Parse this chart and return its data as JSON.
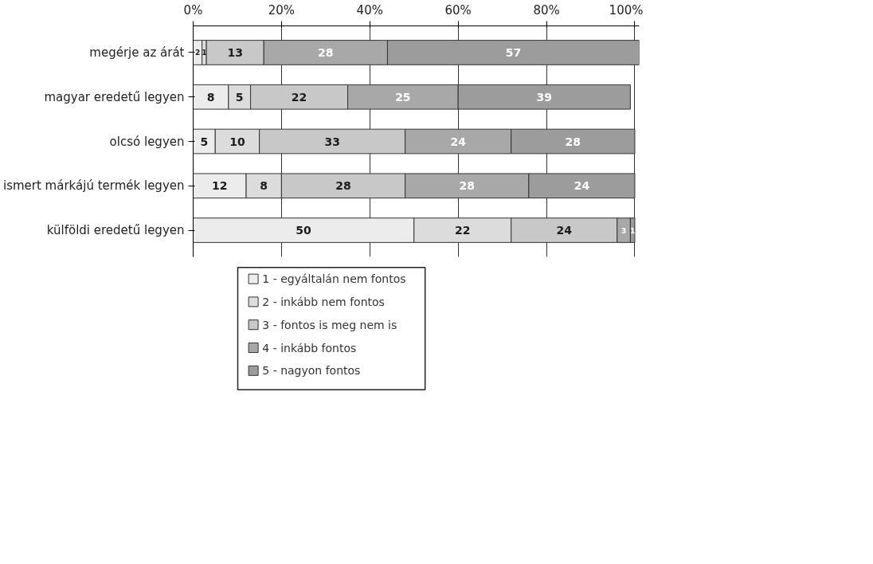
{
  "chart_data": {
    "type": "bar",
    "orientation": "horizontal",
    "stacked": true,
    "data_labels": true,
    "grid": "x",
    "legend": "bottom",
    "categories": [
      "megérje az árát",
      "magyar eredetű legyen",
      "olcsó legyen",
      "ismert márkájú termék legyen",
      "külföldi eredetű legyen"
    ],
    "xlim": [
      0,
      101
    ],
    "xticks": [
      {
        "value": 0,
        "label": "0%"
      },
      {
        "value": 20,
        "label": "20%"
      },
      {
        "value": 40,
        "label": "40%"
      },
      {
        "value": 60,
        "label": "60%"
      },
      {
        "value": 80,
        "label": "80%"
      },
      {
        "value": 100,
        "label": "100%"
      }
    ],
    "series": [
      {
        "name": "1 - egyáltalán nem fontos",
        "color": "#ececec",
        "values": [
          2,
          8,
          5,
          12,
          50
        ]
      },
      {
        "name": "2 - inkább nem fontos",
        "color": "#dcdcdc",
        "values": [
          1,
          5,
          10,
          8,
          22
        ]
      },
      {
        "name": "3 - fontos is meg nem is",
        "color": "#c8c8c8",
        "values": [
          13,
          22,
          33,
          28,
          24
        ]
      },
      {
        "name": "4 - inkább fontos",
        "color": "#a8a8a8",
        "values": [
          28,
          25,
          24,
          28,
          3
        ]
      },
      {
        "name": "5 - nagyon fontos",
        "color": "#9c9c9c",
        "values": [
          57,
          39,
          28,
          24,
          1
        ]
      }
    ]
  }
}
